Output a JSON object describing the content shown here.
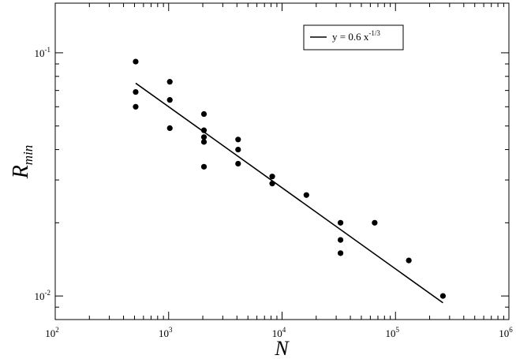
{
  "chart_data": {
    "type": "scatter",
    "title": "",
    "xlabel": "N",
    "ylabel_main": "R",
    "ylabel_sub": "min",
    "xscale": "log",
    "yscale": "log",
    "xlim": [
      100,
      1000000
    ],
    "ylim": [
      0.008,
      0.16
    ],
    "x_ticks": [
      {
        "value": 100,
        "base": "10",
        "exp": "2"
      },
      {
        "value": 1000,
        "base": "10",
        "exp": "3"
      },
      {
        "value": 10000,
        "base": "10",
        "exp": "4"
      },
      {
        "value": 100000,
        "base": "10",
        "exp": "5"
      },
      {
        "value": 1000000,
        "base": "10",
        "exp": "6"
      }
    ],
    "y_ticks": [
      {
        "value": 0.01,
        "base": "10",
        "exp": "-2"
      },
      {
        "value": 0.1,
        "base": "10",
        "exp": "-1"
      }
    ],
    "grid": false,
    "legend_position": "top-right",
    "legend_label_prefix": "y = 0.6 x",
    "legend_label_exp": "-1/3",
    "series": [
      {
        "name": "points",
        "kind": "scatter",
        "color": "#000000",
        "points": [
          {
            "x": 512,
            "y": 0.092
          },
          {
            "x": 512,
            "y": 0.069
          },
          {
            "x": 512,
            "y": 0.06
          },
          {
            "x": 1024,
            "y": 0.076
          },
          {
            "x": 1024,
            "y": 0.064
          },
          {
            "x": 1024,
            "y": 0.049
          },
          {
            "x": 2048,
            "y": 0.056
          },
          {
            "x": 2048,
            "y": 0.048
          },
          {
            "x": 2048,
            "y": 0.045
          },
          {
            "x": 2048,
            "y": 0.043
          },
          {
            "x": 2048,
            "y": 0.034
          },
          {
            "x": 4096,
            "y": 0.044
          },
          {
            "x": 4096,
            "y": 0.04
          },
          {
            "x": 4096,
            "y": 0.035
          },
          {
            "x": 8192,
            "y": 0.031
          },
          {
            "x": 8192,
            "y": 0.029
          },
          {
            "x": 16384,
            "y": 0.026
          },
          {
            "x": 32768,
            "y": 0.02
          },
          {
            "x": 32768,
            "y": 0.017
          },
          {
            "x": 32768,
            "y": 0.015
          },
          {
            "x": 65536,
            "y": 0.02
          },
          {
            "x": 131072,
            "y": 0.014
          },
          {
            "x": 262144,
            "y": 0.01
          }
        ]
      },
      {
        "name": "y = 0.6 x^-1/3",
        "kind": "line",
        "color": "#000000",
        "coefficient": 0.6,
        "exponent": -0.3333333,
        "x_range": [
          512,
          262144
        ]
      }
    ]
  }
}
